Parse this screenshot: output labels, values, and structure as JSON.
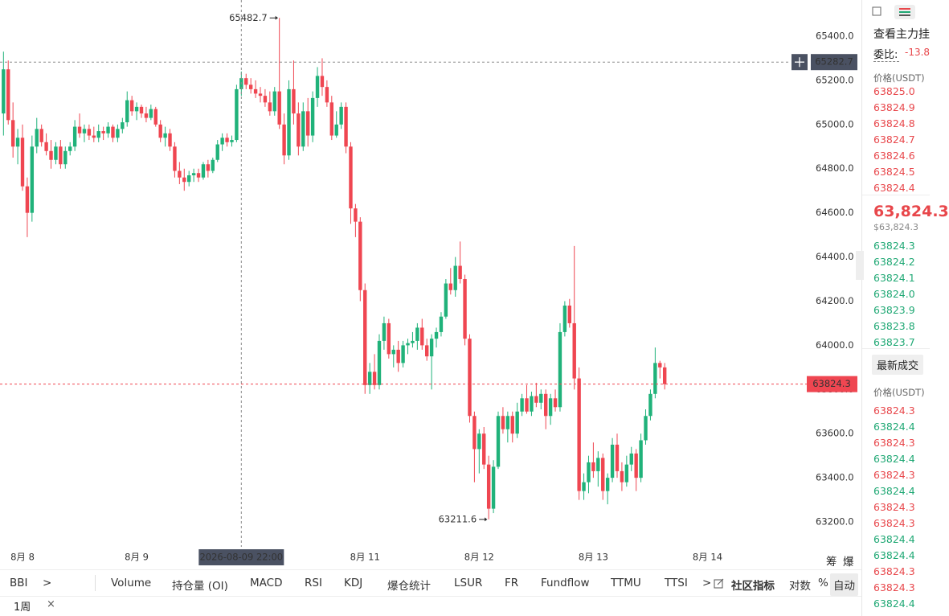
{
  "chart_data": {
    "type": "candlestick",
    "up_color": "#20b27a",
    "down_color": "#ef4651",
    "x": [
      -4,
      -3,
      -2,
      -1,
      0,
      1,
      2,
      3,
      4,
      5,
      6,
      7,
      8,
      9,
      10,
      11,
      12,
      13,
      14,
      15,
      16,
      17,
      18,
      19,
      20,
      21,
      22,
      23,
      24,
      25,
      26,
      27,
      28,
      29,
      30,
      31,
      32,
      33,
      34,
      35,
      36,
      37,
      38,
      39,
      40,
      41,
      42,
      43,
      44,
      45,
      46,
      47,
      48,
      49,
      50,
      51,
      52,
      53,
      54,
      55,
      56,
      57,
      58,
      59,
      60,
      61,
      62,
      63,
      64,
      65,
      66,
      67,
      68,
      69,
      70,
      71,
      72,
      73,
      74,
      75,
      76,
      77,
      78,
      79,
      80,
      81,
      82,
      83,
      84,
      85,
      86,
      87,
      88,
      89,
      90,
      91,
      92,
      93,
      94,
      95,
      96,
      97,
      98,
      99,
      100,
      101,
      102,
      103,
      104,
      105,
      106,
      107,
      108,
      109,
      110,
      111,
      112,
      113,
      114,
      115,
      116,
      117,
      118,
      119,
      120,
      121,
      122,
      123,
      124,
      125,
      126,
      127,
      128,
      129,
      130,
      131,
      132,
      133,
      134,
      135
    ],
    "ohlc": [
      [
        65050,
        65330,
        64950,
        65250
      ],
      [
        65250,
        65290,
        65000,
        65020
      ],
      [
        65020,
        65100,
        64850,
        64900
      ],
      [
        64900,
        64980,
        64820,
        64940
      ],
      [
        64940,
        65000,
        64700,
        64720
      ],
      [
        64720,
        64760,
        64490,
        64600
      ],
      [
        64600,
        64950,
        64560,
        64900
      ],
      [
        64900,
        65030,
        64870,
        64980
      ],
      [
        64980,
        65000,
        64900,
        64920
      ],
      [
        64920,
        64960,
        64860,
        64880
      ],
      [
        64880,
        64930,
        64800,
        64840
      ],
      [
        64840,
        64920,
        64820,
        64900
      ],
      [
        64900,
        64930,
        64800,
        64820
      ],
      [
        64820,
        64900,
        64800,
        64880
      ],
      [
        64880,
        64920,
        64860,
        64900
      ],
      [
        64900,
        65020,
        64880,
        64990
      ],
      [
        64990,
        65050,
        64940,
        64960
      ],
      [
        64960,
        65000,
        64920,
        64980
      ],
      [
        64980,
        65000,
        64930,
        64950
      ],
      [
        64950,
        64990,
        64920,
        64940
      ],
      [
        64940,
        65000,
        64920,
        64970
      ],
      [
        64970,
        64990,
        64930,
        64960
      ],
      [
        64960,
        65010,
        64940,
        64990
      ],
      [
        64990,
        65000,
        64920,
        64940
      ],
      [
        64940,
        65000,
        64920,
        64980
      ],
      [
        64980,
        65030,
        64960,
        65010
      ],
      [
        65010,
        65150,
        64990,
        65110
      ],
      [
        65110,
        65130,
        65040,
        65060
      ],
      [
        65060,
        65100,
        65020,
        65080
      ],
      [
        65080,
        65090,
        65030,
        65050
      ],
      [
        65050,
        65080,
        65010,
        65030
      ],
      [
        65030,
        65090,
        65020,
        65070
      ],
      [
        65070,
        65080,
        64990,
        65000
      ],
      [
        65000,
        65020,
        64920,
        64940
      ],
      [
        64940,
        64990,
        64900,
        64960
      ],
      [
        64960,
        64980,
        64880,
        64900
      ],
      [
        64900,
        64920,
        64760,
        64790
      ],
      [
        64790,
        64830,
        64730,
        64760
      ],
      [
        64760,
        64800,
        64700,
        64740
      ],
      [
        64740,
        64790,
        64720,
        64770
      ],
      [
        64770,
        64800,
        64740,
        64780
      ],
      [
        64780,
        64800,
        64740,
        64760
      ],
      [
        64760,
        64830,
        64750,
        64820
      ],
      [
        64820,
        64840,
        64760,
        64790
      ],
      [
        64790,
        64850,
        64780,
        64840
      ],
      [
        64840,
        64930,
        64830,
        64910
      ],
      [
        64910,
        64960,
        64880,
        64940
      ],
      [
        64940,
        64960,
        64900,
        64920
      ],
      [
        64920,
        64950,
        64900,
        64930
      ],
      [
        64930,
        65180,
        64920,
        65160
      ],
      [
        65160,
        65240,
        65130,
        65210
      ],
      [
        65210,
        65230,
        65160,
        65180
      ],
      [
        65180,
        65210,
        65140,
        65160
      ],
      [
        65160,
        65200,
        65120,
        65140
      ],
      [
        65140,
        65170,
        65100,
        65130
      ],
      [
        65130,
        65160,
        65080,
        65100
      ],
      [
        65100,
        65150,
        65040,
        65060
      ],
      [
        65060,
        65170,
        65040,
        65150
      ],
      [
        65150,
        65482.7,
        64980,
        65000
      ],
      [
        65000,
        65050,
        64820,
        64860
      ],
      [
        64860,
        65200,
        64840,
        65160
      ],
      [
        65160,
        65290,
        65000,
        65050
      ],
      [
        65050,
        65100,
        64860,
        64900
      ],
      [
        64900,
        65100,
        64880,
        65060
      ],
      [
        65060,
        65120,
        64900,
        64950
      ],
      [
        64950,
        65150,
        64920,
        65120
      ],
      [
        65120,
        65260,
        65080,
        65220
      ],
      [
        65220,
        65300,
        65130,
        65170
      ],
      [
        65170,
        65200,
        65080,
        65100
      ],
      [
        65100,
        65130,
        64930,
        64950
      ],
      [
        64950,
        65060,
        64940,
        65000
      ],
      [
        65000,
        65100,
        64980,
        65080
      ],
      [
        65080,
        65100,
        64870,
        64900
      ],
      [
        64900,
        64920,
        64550,
        64620
      ],
      [
        64620,
        64640,
        64490,
        64560
      ],
      [
        64560,
        64580,
        64200,
        64250
      ],
      [
        64250,
        64280,
        63780,
        63820
      ],
      [
        63820,
        63920,
        63780,
        63880
      ],
      [
        63880,
        63960,
        63800,
        63820
      ],
      [
        63820,
        64050,
        63800,
        64020
      ],
      [
        64020,
        64130,
        63980,
        64100
      ],
      [
        64100,
        64120,
        63940,
        63960
      ],
      [
        63960,
        64000,
        63900,
        63980
      ],
      [
        63980,
        64020,
        63880,
        63920
      ],
      [
        63920,
        64020,
        63900,
        64000
      ],
      [
        64000,
        64030,
        63960,
        64010
      ],
      [
        64010,
        64060,
        63990,
        64020
      ],
      [
        64020,
        64100,
        63980,
        64080
      ],
      [
        64080,
        64120,
        63980,
        64000
      ],
      [
        64000,
        64030,
        63930,
        63950
      ],
      [
        63950,
        64050,
        63800,
        64030
      ],
      [
        64030,
        64080,
        63990,
        64060
      ],
      [
        64060,
        64150,
        64040,
        64130
      ],
      [
        64130,
        64300,
        64120,
        64280
      ],
      [
        64280,
        64350,
        64230,
        64250
      ],
      [
        64250,
        64400,
        64220,
        64360
      ],
      [
        64360,
        64470,
        64280,
        64300
      ],
      [
        64300,
        64320,
        64000,
        64030
      ],
      [
        64030,
        64050,
        63650,
        63680
      ],
      [
        63680,
        63700,
        63380,
        63530
      ],
      [
        63530,
        63620,
        63420,
        63600
      ],
      [
        63600,
        63630,
        63440,
        63460
      ],
      [
        63460,
        63500,
        63211.6,
        63260
      ],
      [
        63260,
        63480,
        63240,
        63450
      ],
      [
        63450,
        63700,
        63440,
        63680
      ],
      [
        63680,
        63720,
        63600,
        63620
      ],
      [
        63620,
        63700,
        63560,
        63680
      ],
      [
        63680,
        63700,
        63560,
        63600
      ],
      [
        63600,
        63740,
        63580,
        63700
      ],
      [
        63700,
        63780,
        63680,
        63760
      ],
      [
        63760,
        63820,
        63690,
        63700
      ],
      [
        63700,
        63790,
        63680,
        63770
      ],
      [
        63770,
        63830,
        63720,
        63740
      ],
      [
        63740,
        63800,
        63710,
        63780
      ],
      [
        63780,
        63800,
        63620,
        63680
      ],
      [
        63680,
        63780,
        63640,
        63760
      ],
      [
        63760,
        63800,
        63700,
        63720
      ],
      [
        63720,
        64100,
        63700,
        64060
      ],
      [
        64060,
        64200,
        64040,
        64180
      ],
      [
        64180,
        64210,
        64080,
        64100
      ],
      [
        64100,
        64450,
        63800,
        63850
      ],
      [
        63850,
        63900,
        63300,
        63340
      ],
      [
        63340,
        63420,
        63300,
        63380
      ],
      [
        63380,
        63500,
        63330,
        63470
      ],
      [
        63470,
        63560,
        63400,
        63430
      ],
      [
        63430,
        63520,
        63360,
        63490
      ],
      [
        63490,
        63510,
        63300,
        63340
      ],
      [
        63340,
        63420,
        63280,
        63400
      ],
      [
        63400,
        63580,
        63380,
        63550
      ],
      [
        63550,
        63600,
        63400,
        63430
      ],
      [
        63430,
        63470,
        63340,
        63380
      ],
      [
        63380,
        63500,
        63360,
        63460
      ],
      [
        63460,
        63540,
        63430,
        63510
      ],
      [
        63510,
        63530,
        63340,
        63400
      ],
      [
        63400,
        63600,
        63380,
        63570
      ],
      [
        63570,
        63710,
        63550,
        63680
      ],
      [
        63680,
        63800,
        63660,
        63780
      ],
      [
        63780,
        63990,
        63760,
        63920
      ],
      [
        63920,
        63930,
        63850,
        63900
      ],
      [
        63900,
        63920,
        63800,
        63824.3
      ]
    ],
    "xlim": [
      -4.73,
      164.19
    ],
    "xticks": [
      {
        "value": 0,
        "label": "8月 8"
      },
      {
        "value": 24,
        "label": "8月 9"
      },
      {
        "value": 72,
        "label": "8月 11"
      },
      {
        "value": 96,
        "label": "8月 12"
      },
      {
        "value": 120,
        "label": "8月 13"
      },
      {
        "value": 144,
        "label": "8月 14"
      }
    ],
    "ylim": [
      63087.3,
      65563.9
    ],
    "yticks": [
      {
        "value": 65400,
        "label": "65400.0"
      },
      {
        "value": 65200,
        "label": "65200.0"
      },
      {
        "value": 65000,
        "label": "65000.0"
      },
      {
        "value": 64800,
        "label": "64800.0"
      },
      {
        "value": 64600,
        "label": "64600.0"
      },
      {
        "value": 64400,
        "label": "64400.0"
      },
      {
        "value": 64200,
        "label": "64200.0"
      },
      {
        "value": 64000,
        "label": "64000.0"
      },
      {
        "value": 63800,
        "label": "63800.0"
      },
      {
        "value": 63600,
        "label": "63600.0"
      },
      {
        "value": 63400,
        "label": "63400.0"
      },
      {
        "value": 63200,
        "label": "63200.0"
      }
    ],
    "annotations": [
      {
        "value": 65482.7,
        "label": "65482.7"
      },
      {
        "value": 63211.6,
        "label": "63211.6"
      }
    ],
    "crosshair": {
      "x": 46,
      "x_label": "2026-08-09 22:00",
      "y": 65282.7,
      "y_label": "65282.7"
    },
    "last_price": {
      "value": 63824.3,
      "label": "63824.3"
    }
  },
  "side_tools": [
    "筹",
    "爆"
  ],
  "toolbar": {
    "items": [
      "BBI",
      ">",
      "Volume",
      "持仓量 (OI)",
      "MACD",
      "RSI",
      "KDJ",
      "爆仓统计",
      "LSUR",
      "FR",
      "Fundflow",
      "TTMU",
      "TTSI",
      ">",
      "社区指标",
      "对数",
      "%",
      "自动"
    ],
    "tab": "1周",
    "close": "×"
  },
  "order_book": {
    "title": "查看主力挂",
    "ratio_label": "委比:",
    "ratio": "-13.8",
    "price_header": "价格(USDT)",
    "asks": [
      "63825.0",
      "63824.9",
      "63824.8",
      "63824.7",
      "63824.6",
      "63824.5",
      "63824.4"
    ],
    "last": "63,824.3",
    "last_usd": "$63,824.3",
    "bids": [
      "63824.3",
      "63824.2",
      "63824.1",
      "63824.0",
      "63823.9",
      "63823.8",
      "63823.7"
    ],
    "trades_button": "最新成交",
    "trades_header": "价格(USDT)",
    "trades": [
      {
        "price": "63824.3",
        "color": "#e8474b"
      },
      {
        "price": "63824.4",
        "color": "#1fa874"
      },
      {
        "price": "63824.3",
        "color": "#e8474b"
      },
      {
        "price": "63824.4",
        "color": "#1fa874"
      },
      {
        "price": "63824.3",
        "color": "#e8474b"
      },
      {
        "price": "63824.4",
        "color": "#1fa874"
      },
      {
        "price": "63824.3",
        "color": "#e8474b"
      },
      {
        "price": "63824.3",
        "color": "#e8474b"
      },
      {
        "price": "63824.4",
        "color": "#1fa874"
      },
      {
        "price": "63824.4",
        "color": "#1fa874"
      },
      {
        "price": "63824.3",
        "color": "#e8474b"
      },
      {
        "price": "63824.3",
        "color": "#e8474b"
      },
      {
        "price": "63824.4",
        "color": "#1fa874"
      }
    ]
  }
}
